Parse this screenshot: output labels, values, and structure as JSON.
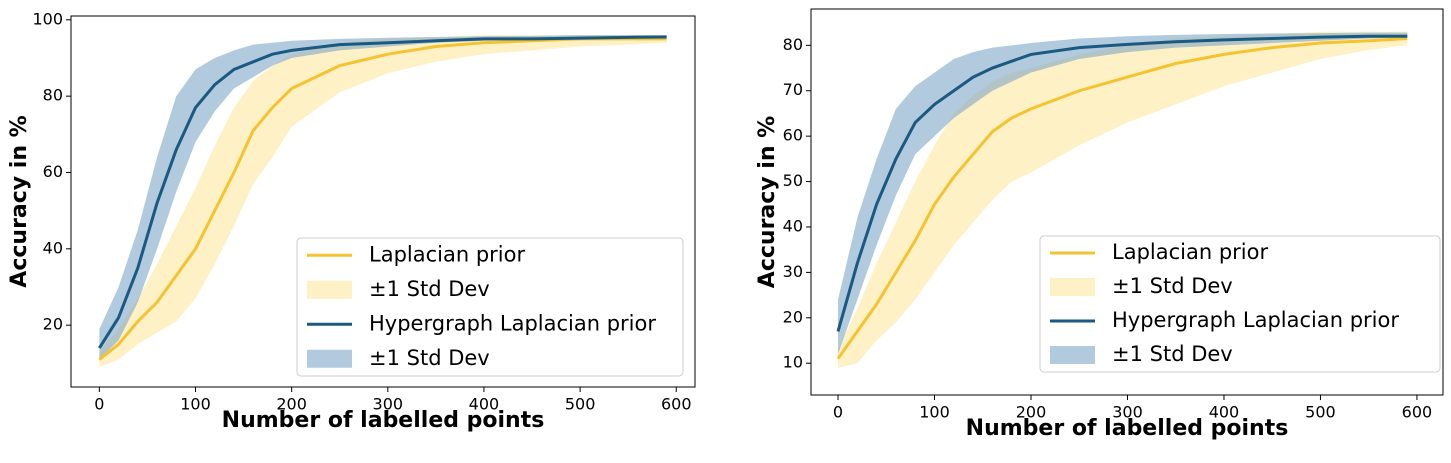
{
  "chart_data": [
    {
      "type": "line",
      "xlabel": "Number of labelled points",
      "ylabel": "Accuracy in %",
      "xlim": [
        -29.5,
        619.5
      ],
      "ylim": [
        3.8,
        101
      ],
      "xticks": [
        0,
        100,
        200,
        300,
        400,
        500,
        600
      ],
      "yticks": [
        20,
        40,
        60,
        80,
        100
      ],
      "x": [
        0,
        20,
        40,
        60,
        80,
        100,
        120,
        140,
        160,
        180,
        200,
        250,
        300,
        350,
        400,
        450,
        500,
        550,
        590
      ],
      "series": [
        {
          "name": "Laplacian prior",
          "color": "#f5c230",
          "values": [
            11,
            15,
            21,
            26,
            33,
            40,
            50,
            60,
            71,
            77,
            82,
            88,
            91,
            93,
            94,
            94.5,
            95,
            95,
            95
          ],
          "band": {
            "name": "±1 Std Dev",
            "color": "#fde7a0",
            "lower": [
              9,
              11,
              15,
              18,
              21,
              27,
              36,
              46,
              57,
              64,
              72,
              81,
              86,
              89,
              91,
              92,
              93,
              93.5,
              94
            ],
            "upper": [
              13,
              19,
              27,
              36,
              46,
              56,
              67,
              77,
              84,
              88,
              91,
              94,
              95,
              95.5,
              96,
              96,
              96,
              96,
              96
            ]
          }
        },
        {
          "name": "Hypergraph Laplacian prior",
          "color": "#1a5a82",
          "values": [
            14,
            22,
            35,
            52,
            66,
            77,
            83,
            87,
            89,
            91,
            92,
            93.5,
            94,
            94.5,
            95,
            95,
            95.2,
            95.4,
            95.5
          ],
          "band": {
            "name": "±1 Std Dev",
            "color": "#7fa6c6",
            "lower": [
              11,
              16,
              26,
              40,
              55,
              68,
              76,
              82,
              85,
              88,
              90,
              92,
              93,
              94,
              94.5,
              94.8,
              95,
              95.2,
              95.3
            ],
            "upper": [
              19,
              30,
              45,
              64,
              80,
              87,
              90,
              92,
              93.5,
              94,
              94.5,
              95,
              95.3,
              95.5,
              95.7,
              95.8,
              96,
              96,
              96
            ]
          }
        }
      ]
    },
    {
      "type": "line",
      "xlabel": "Number of labelled points",
      "ylabel": "Accuracy in %",
      "xlim": [
        -28,
        627
      ],
      "ylim": [
        3,
        88
      ],
      "xticks": [
        0,
        100,
        200,
        300,
        400,
        500,
        600
      ],
      "yticks": [
        10,
        20,
        30,
        40,
        50,
        60,
        70,
        80
      ],
      "x": [
        0,
        20,
        40,
        60,
        80,
        100,
        120,
        140,
        160,
        180,
        200,
        250,
        300,
        350,
        400,
        450,
        500,
        550,
        590
      ],
      "series": [
        {
          "name": "Laplacian prior",
          "color": "#f5c230",
          "values": [
            11,
            17,
            23,
            30,
            37,
            45,
            51,
            56,
            61,
            64,
            66,
            70,
            73,
            76,
            78,
            79.5,
            80.5,
            81,
            81.5
          ],
          "band": {
            "name": "±1 Std Dev",
            "color": "#fde7a0",
            "lower": [
              9,
              10,
              15,
              19,
              24,
              30,
              36,
              41,
              46,
              50,
              52,
              58,
              63,
              67,
              71,
              74,
              77,
              79,
              80
            ],
            "upper": [
              13,
              22,
              32,
              41,
              50,
              58,
              65,
              69,
              72,
              74,
              75,
              78,
              80,
              81.5,
              82,
              82.5,
              83,
              83,
              83
            ]
          }
        },
        {
          "name": "Hypergraph Laplacian prior",
          "color": "#1a5a82",
          "values": [
            17,
            32,
            45,
            55,
            63,
            67,
            70,
            73,
            75,
            76.5,
            78,
            79.5,
            80.2,
            80.8,
            81.2,
            81.5,
            81.8,
            82,
            82
          ],
          "band": {
            "name": "±1 Std Dev",
            "color": "#7fa6c6",
            "lower": [
              12,
              24,
              36,
              47,
              56,
              60,
              64,
              67,
              70,
              72,
              74,
              77,
              78.5,
              79.5,
              80,
              80.5,
              81,
              81.5,
              81.8
            ],
            "upper": [
              24,
              42,
              55,
              66,
              71,
              74,
              77,
              78.5,
              79.5,
              80,
              80.5,
              81.5,
              82,
              82.3,
              82.5,
              82.6,
              82.7,
              82.8,
              82.8
            ]
          }
        }
      ]
    }
  ]
}
